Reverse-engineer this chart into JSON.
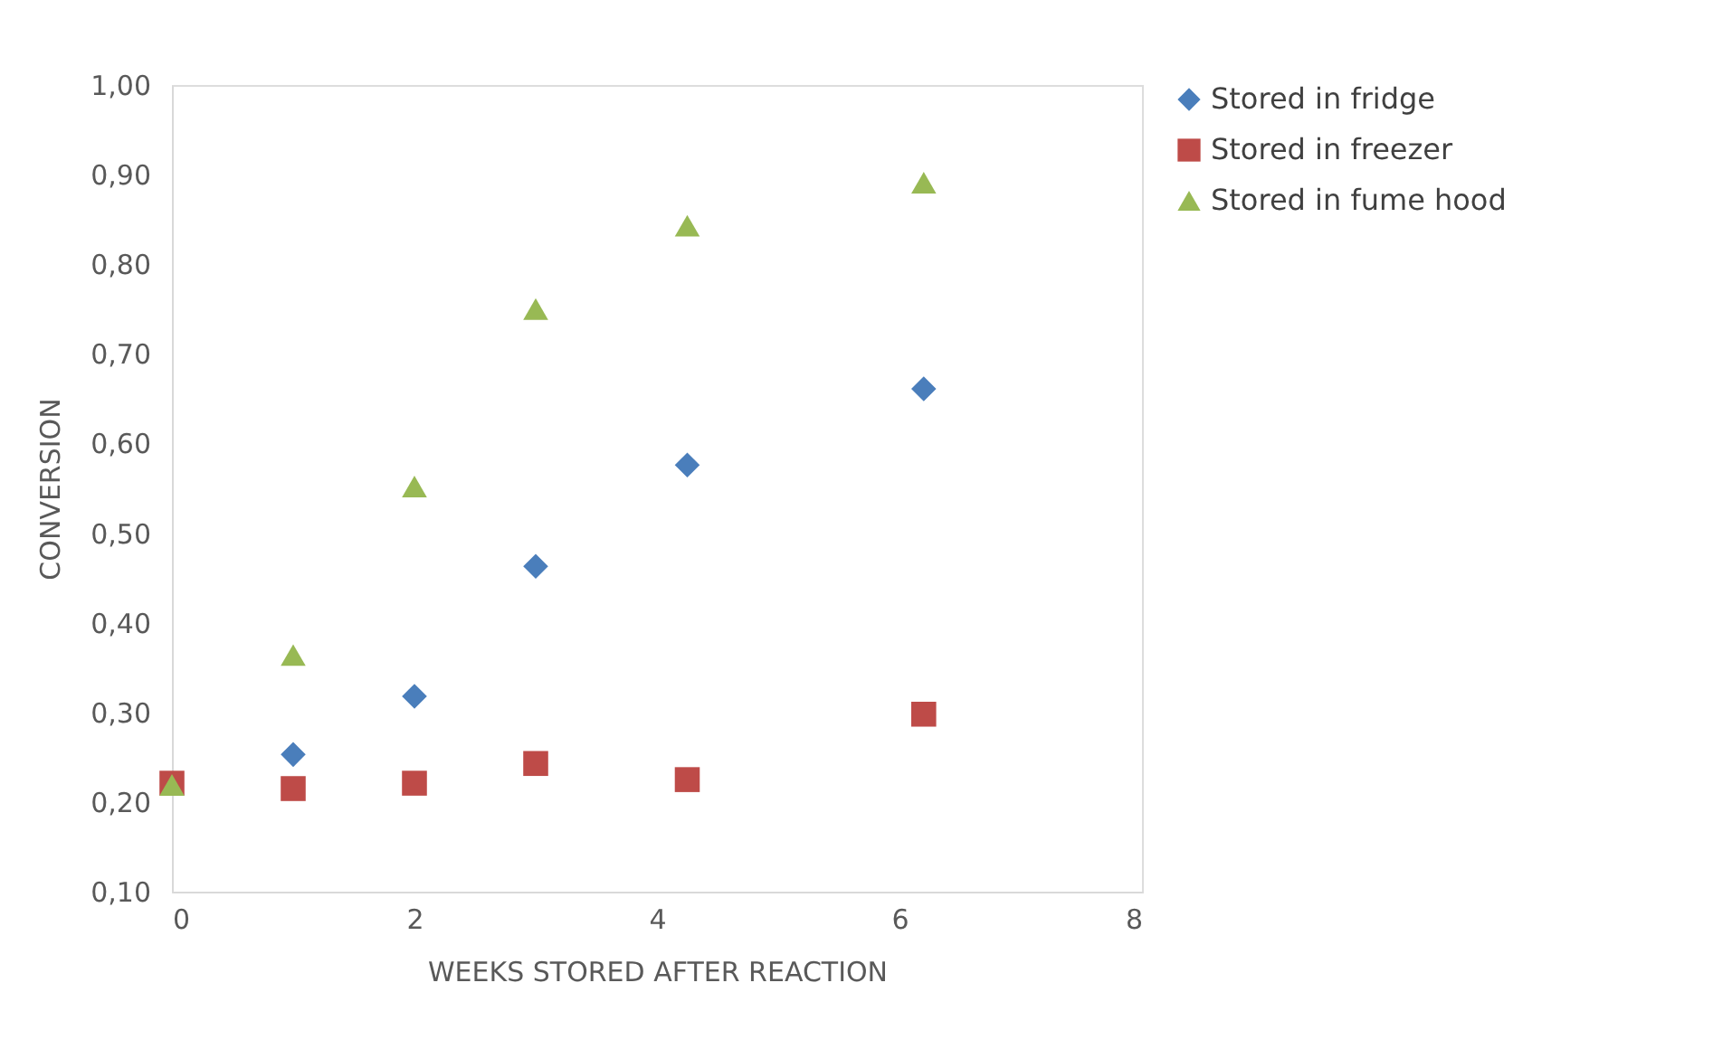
{
  "chart_data": {
    "type": "scatter",
    "xlabel": "WEEKS STORED AFTER REACTION",
    "ylabel": "CONVERSION",
    "xlim": [
      0,
      8
    ],
    "xticks": [
      0,
      2,
      4,
      6,
      8
    ],
    "ylim": [
      0.1,
      1.0
    ],
    "yticks": [
      {
        "value": 0.1,
        "label": "0,10"
      },
      {
        "value": 0.2,
        "label": "0,20"
      },
      {
        "value": 0.3,
        "label": "0,30"
      },
      {
        "value": 0.4,
        "label": "0,40"
      },
      {
        "value": 0.5,
        "label": "0,50"
      },
      {
        "value": 0.6,
        "label": "0,60"
      },
      {
        "value": 0.7,
        "label": "0,70"
      },
      {
        "value": 0.8,
        "label": "0,80"
      },
      {
        "value": 0.9,
        "label": "0,90"
      },
      {
        "value": 1.0,
        "label": "1,00"
      }
    ],
    "grid": false,
    "legend": "right",
    "series": [
      {
        "name": "Stored in fridge",
        "color": "#4a7ebb",
        "marker": "diamond",
        "x": [
          1,
          2,
          3,
          4.25,
          6.2
        ],
        "values": [
          0.253,
          0.318,
          0.463,
          0.576,
          0.661
        ]
      },
      {
        "name": "Stored in freezer",
        "color": "#be4b48",
        "marker": "square",
        "x": [
          0,
          1,
          2,
          3,
          4.25,
          6.2
        ],
        "values": [
          0.221,
          0.215,
          0.221,
          0.243,
          0.225,
          0.298
        ]
      },
      {
        "name": "Stored in fume hood",
        "color": "#98b954",
        "marker": "triangle",
        "x": [
          0,
          1,
          2,
          3,
          4.25,
          6.2
        ],
        "values": [
          0.219,
          0.364,
          0.552,
          0.75,
          0.843,
          0.891
        ]
      }
    ]
  }
}
